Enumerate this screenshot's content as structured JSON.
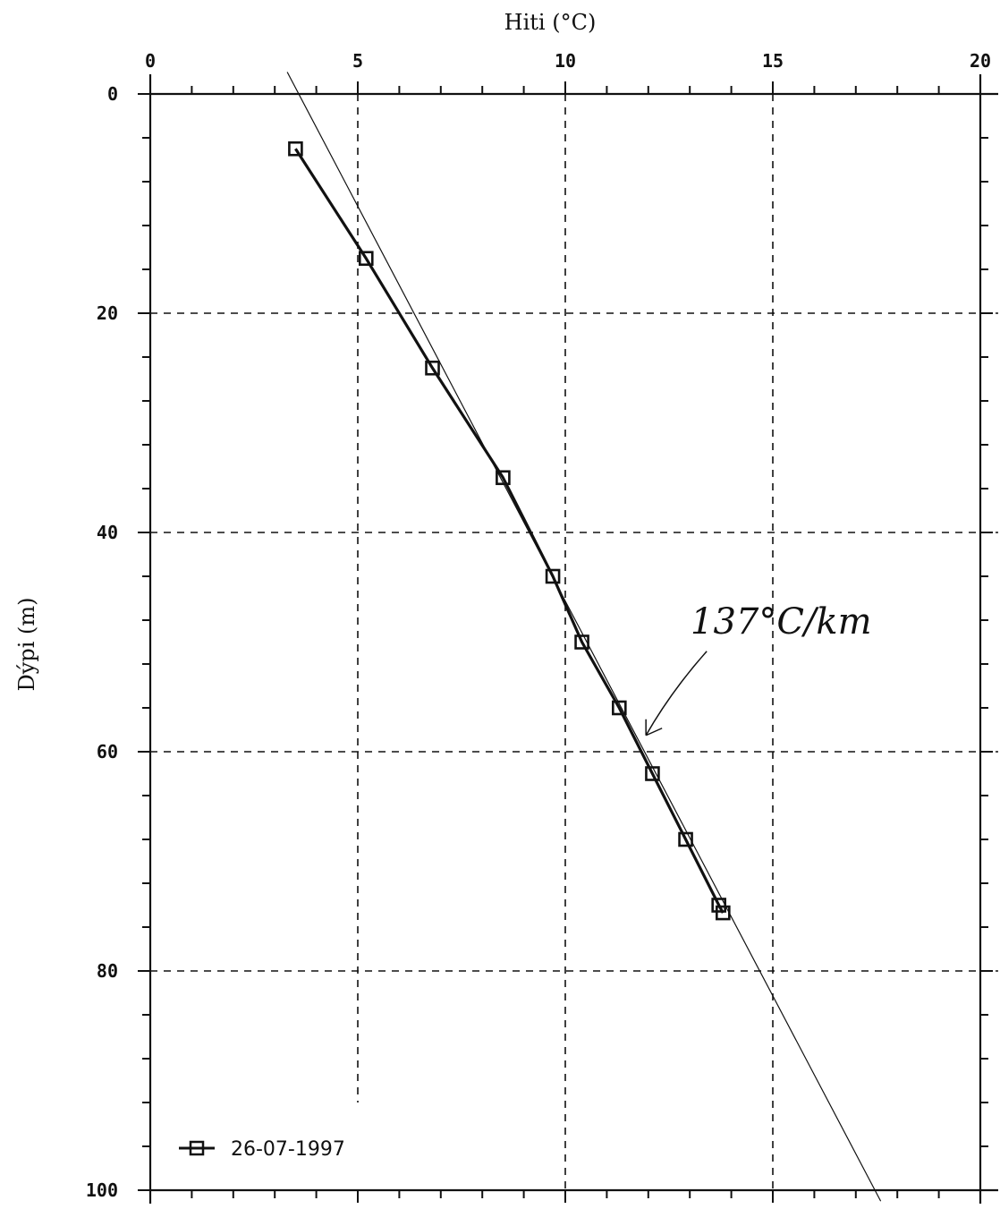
{
  "chart_data": {
    "type": "line",
    "xlabel": "Hiti (°C)",
    "ylabel": "Dýpi (m)",
    "x_axis_position": "top",
    "y_axis_inverted": true,
    "xlim": [
      0,
      20
    ],
    "ylim": [
      0,
      100
    ],
    "x_ticks": [
      0,
      5,
      10,
      15,
      20
    ],
    "y_ticks": [
      0,
      20,
      40,
      60,
      80,
      100
    ],
    "x_tick_labels": [
      "0",
      "5",
      "10",
      "15",
      "20"
    ],
    "y_tick_labels": [
      "0",
      "20",
      "40",
      "60",
      "80",
      "100"
    ],
    "grid": true,
    "legend_position": "bottom-left",
    "series": [
      {
        "name": "26-07-1997",
        "marker": "square",
        "points": [
          {
            "x": 3.5,
            "y": 5
          },
          {
            "x": 5.2,
            "y": 15
          },
          {
            "x": 6.8,
            "y": 25
          },
          {
            "x": 8.5,
            "y": 35
          },
          {
            "x": 9.7,
            "y": 44
          },
          {
            "x": 10.4,
            "y": 50
          },
          {
            "x": 11.3,
            "y": 56
          },
          {
            "x": 12.1,
            "y": 62
          },
          {
            "x": 12.9,
            "y": 68
          },
          {
            "x": 13.7,
            "y": 74
          },
          {
            "x": 13.8,
            "y": 74.7
          }
        ]
      }
    ],
    "trend_line": {
      "points": [
        {
          "x": 3.3,
          "y": -2
        },
        {
          "x": 17.6,
          "y": 101
        }
      ]
    },
    "annotation": {
      "text": "137°C/km",
      "arrow_target": {
        "x": 11.9,
        "y": 59
      }
    }
  }
}
